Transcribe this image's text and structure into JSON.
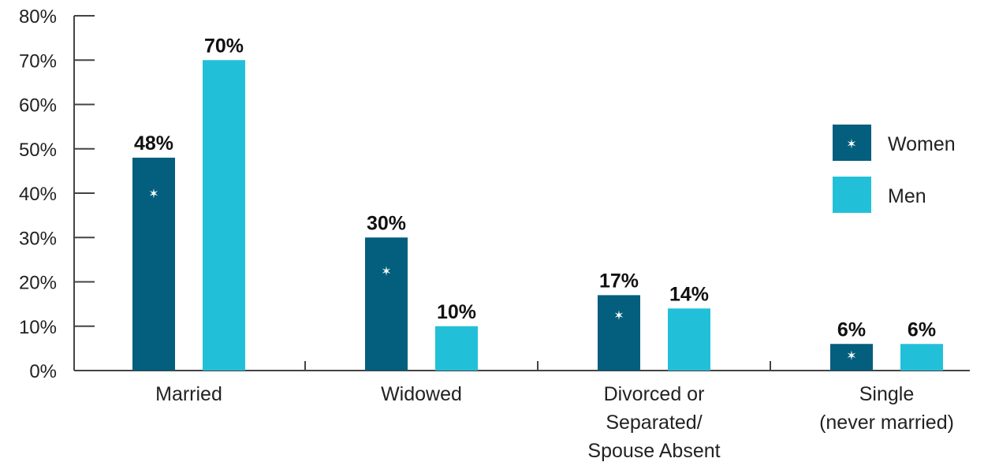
{
  "chart_data": {
    "type": "bar",
    "categories": [
      [
        "Married"
      ],
      [
        "Widowed"
      ],
      [
        "Divorced or",
        "Separated/",
        "Spouse Absent"
      ],
      [
        "Single",
        "(never married)"
      ]
    ],
    "series": [
      {
        "name": "Women",
        "values": [
          48,
          30,
          17,
          6
        ],
        "labels": [
          "48%",
          "30%",
          "17%",
          "6%"
        ],
        "color": "#045E7D",
        "marker": "✶",
        "marker_values": [
          40,
          22.5,
          12.5,
          3.5
        ]
      },
      {
        "name": "Men",
        "values": [
          70,
          10,
          14,
          6
        ],
        "labels": [
          "70%",
          "10%",
          "14%",
          "6%"
        ],
        "color": "#22C0D8"
      }
    ],
    "y_ticks": [
      "0%",
      "10%",
      "20%",
      "30%",
      "40%",
      "50%",
      "60%",
      "70%",
      "80%"
    ],
    "ylim": [
      0,
      80
    ],
    "legend_position": "right",
    "grid": false
  }
}
